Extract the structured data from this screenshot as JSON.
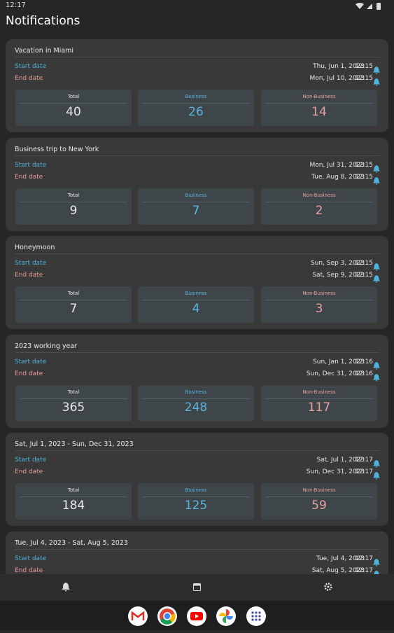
{
  "status_bar": {
    "time": "12:17"
  },
  "header": {
    "title": "Notifications"
  },
  "labels": {
    "start_date": "Start date",
    "end_date": "End date",
    "total": "Total",
    "business": "Business",
    "non_business": "Non-Business"
  },
  "cards": [
    {
      "title": "Vacation in Miami",
      "start_date": "Thu, Jun 1, 2023",
      "start_time": "12:15",
      "end_date": "Mon, Jul 10, 2023",
      "end_time": "12:15",
      "total": 40,
      "business": 26,
      "non_business": 14
    },
    {
      "title": "Business trip to New York",
      "start_date": "Mon, Jul 31, 2023",
      "start_time": "12:15",
      "end_date": "Tue, Aug 8, 2023",
      "end_time": "12:15",
      "total": 9,
      "business": 7,
      "non_business": 2
    },
    {
      "title": "Honeymoon",
      "start_date": "Sun, Sep 3, 2023",
      "start_time": "12:15",
      "end_date": "Sat, Sep 9, 2023",
      "end_time": "12:15",
      "total": 7,
      "business": 4,
      "non_business": 3
    },
    {
      "title": "2023 working year",
      "start_date": "Sun, Jan 1, 2023",
      "start_time": "12:16",
      "end_date": "Sun, Dec 31, 2023",
      "end_time": "12:16",
      "total": 365,
      "business": 248,
      "non_business": 117
    },
    {
      "title": "Sat, Jul 1, 2023 - Sun, Dec 31, 2023",
      "start_date": "Sat, Jul 1, 2023",
      "start_time": "12:17",
      "end_date": "Sun, Dec 31, 2023",
      "end_time": "12:17",
      "total": 184,
      "business": 125,
      "non_business": 59
    },
    {
      "title": "Tue, Jul 4, 2023 - Sat, Aug 5, 2023",
      "start_date": "Tue, Jul 4, 2023",
      "start_time": "12:17",
      "end_date": "Sat, Aug 5, 2023",
      "end_time": "12:17"
    }
  ]
}
